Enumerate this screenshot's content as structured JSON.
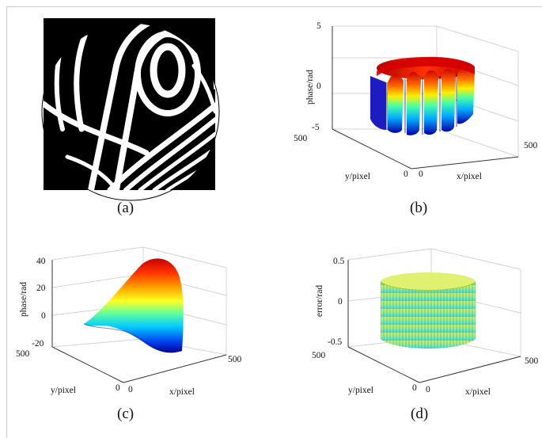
{
  "figure": {
    "panels": [
      {
        "id": "a",
        "caption": "(a)"
      },
      {
        "id": "b",
        "caption": "(b)",
        "z_label": "phase/rad",
        "x_label": "x/pixel",
        "y_label": "y/pixel",
        "z_ticks": [
          "5",
          "0",
          "-5"
        ],
        "x_ticks": [
          "0",
          "500"
        ],
        "y_ticks": [
          "500",
          "0"
        ]
      },
      {
        "id": "c",
        "caption": "(c)",
        "z_label": "phase/rad",
        "x_label": "x/pixel",
        "y_label": "y/pixel",
        "z_ticks": [
          "40",
          "20",
          "0",
          "-20"
        ],
        "x_ticks": [
          "0",
          "500"
        ],
        "y_ticks": [
          "500",
          "0"
        ]
      },
      {
        "id": "d",
        "caption": "(d)",
        "z_label": "error/rad",
        "x_label": "x/pixel",
        "y_label": "y/pixel",
        "z_ticks": [
          "0.5",
          "0",
          "-0.5"
        ],
        "x_ticks": [
          "0",
          "500"
        ],
        "y_ticks": [
          "500",
          "0"
        ]
      }
    ],
    "colors": {
      "jet_high": "#cc0000",
      "jet_mid": "#ffee00",
      "jet_low": "#0000aa",
      "fringe_background": "#000000",
      "fringe": "#ffffff"
    }
  }
}
